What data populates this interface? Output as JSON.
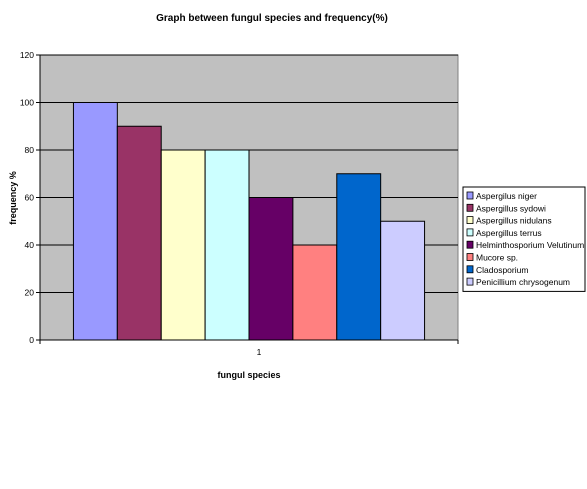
{
  "chart_data": {
    "type": "bar",
    "title": "Graph between fungul species and frequency(%)",
    "xlabel": "fungul species",
    "ylabel": "frequency %",
    "categories": [
      "1"
    ],
    "ylim": [
      0,
      120
    ],
    "yticks": [
      0,
      20,
      40,
      60,
      80,
      100,
      120
    ],
    "grid": true,
    "legend": "right",
    "plot_background": "#c0c0c0",
    "series": [
      {
        "name": "Aspergilus niger",
        "values": [
          100
        ],
        "color": "#9999ff"
      },
      {
        "name": "Aspergillus sydowi",
        "values": [
          90
        ],
        "color": "#993366"
      },
      {
        "name": "Aspergillus nidulans",
        "values": [
          80
        ],
        "color": "#ffffcc"
      },
      {
        "name": "Aspergillus terrus",
        "values": [
          80
        ],
        "color": "#ccffff"
      },
      {
        "name": "Helminthosporium Velutinum",
        "values": [
          60
        ],
        "color": "#660066"
      },
      {
        "name": "Mucore sp.",
        "values": [
          40
        ],
        "color": "#ff8080"
      },
      {
        "name": "Cladosporium",
        "values": [
          70
        ],
        "color": "#0066cc"
      },
      {
        "name": "Penicillium chrysogenum",
        "values": [
          50
        ],
        "color": "#ccccff"
      }
    ]
  }
}
